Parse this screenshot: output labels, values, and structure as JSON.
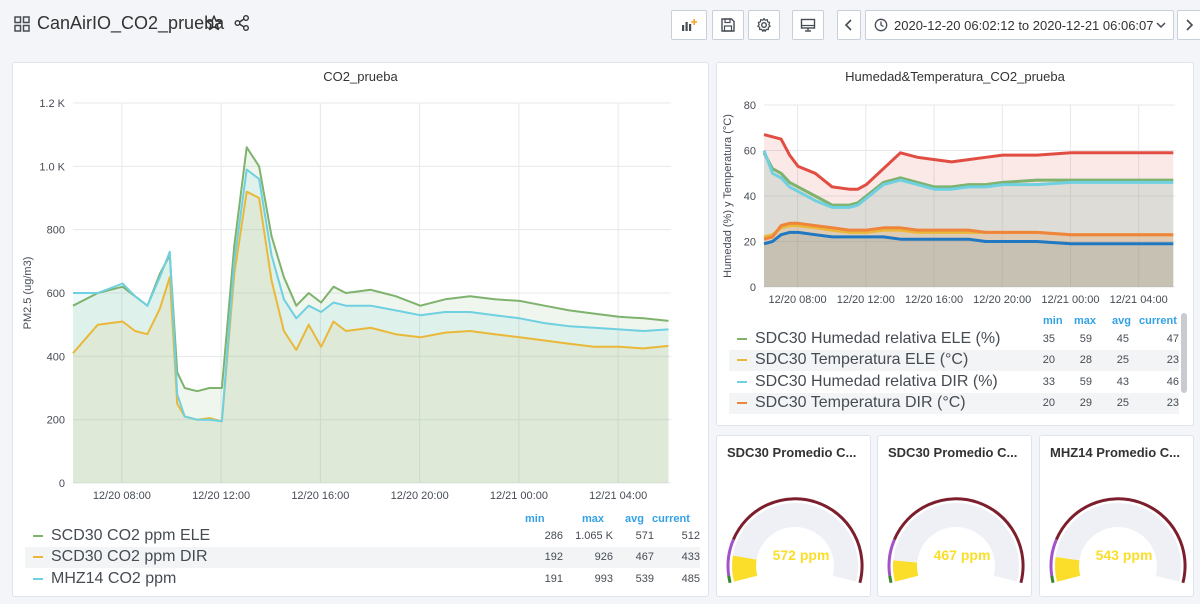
{
  "header": {
    "title": "CanAirIO_CO2_prueba",
    "time_range": "2020-12-20 06:02:12 to 2020-12-21 06:06:07"
  },
  "icons": {
    "grid": "grid-icon",
    "star": "star-icon",
    "share": "share-icon",
    "add_panel": "add-panel-icon",
    "save": "save-icon",
    "settings": "gear-icon",
    "tv": "tv-mode-icon",
    "back": "chevron-left-icon",
    "clock": "clock-icon",
    "caret": "chevron-down-icon",
    "forward": "chevron-right-icon"
  },
  "co2_panel": {
    "title": "CO2_prueba",
    "legend_headers": {
      "min": "min",
      "max": "max",
      "avg": "avg",
      "current": "current"
    },
    "legend": [
      {
        "name": "SCD30 CO2 ppm ELE",
        "color": "#7eb26d",
        "min": "286",
        "max": "1.065 K",
        "avg": "571",
        "current": "512"
      },
      {
        "name": "SCD30 CO2 ppm DIR",
        "color": "#eab839",
        "min": "192",
        "max": "926",
        "avg": "467",
        "current": "433"
      },
      {
        "name": "MHZ14 CO2 ppm",
        "color": "#6ed0e0",
        "min": "191",
        "max": "993",
        "avg": "539",
        "current": "485"
      }
    ]
  },
  "hum_panel": {
    "title": "Humedad&Temperatura_CO2_prueba",
    "legend_headers": {
      "min": "min",
      "max": "max",
      "avg": "avg",
      "current": "current"
    },
    "legend": [
      {
        "name": "SDC30 Humedad relativa ELE (%)",
        "color": "#7eb26d",
        "min": "35",
        "max": "59",
        "avg": "45",
        "current": "47"
      },
      {
        "name": "SDC30 Temperatura ELE (°C)",
        "color": "#eab839",
        "min": "20",
        "max": "28",
        "avg": "25",
        "current": "23"
      },
      {
        "name": "SDC30 Humedad relativa DIR (%)",
        "color": "#6ed0e0",
        "min": "33",
        "max": "59",
        "avg": "43",
        "current": "46"
      },
      {
        "name": "SDC30 Temperatura DIR (°C)",
        "color": "#ef843c",
        "min": "20",
        "max": "29",
        "avg": "25",
        "current": "23"
      }
    ]
  },
  "gauges": [
    {
      "title": "SDC30 Promedio C...",
      "value_text": "572 ppm",
      "value": 572
    },
    {
      "title": "SDC30 Promedio C...",
      "value_text": "467 ppm",
      "value": 467
    },
    {
      "title": "MHZ14 Promedio C...",
      "value_text": "543 ppm",
      "value": 543
    }
  ],
  "chart_data": [
    {
      "type": "line",
      "title": "CO2_prueba",
      "ylabel": "PM2.5 (ug/m3)",
      "ylim": [
        0,
        1200
      ],
      "yticks": [
        "0",
        "200",
        "400",
        "600",
        "800",
        "1.0 K",
        "1.2 K"
      ],
      "xticks": [
        "12/20 08:00",
        "12/20 12:00",
        "12/20 16:00",
        "12/20 20:00",
        "12/21 00:00",
        "12/21 04:00"
      ],
      "x_hours": [
        0,
        1,
        2,
        2.5,
        3,
        3.5,
        3.9,
        4.2,
        4.5,
        5,
        5.5,
        6,
        6.5,
        7,
        7.5,
        8,
        8.5,
        9,
        9.5,
        10,
        10.5,
        11,
        12,
        13,
        14,
        15,
        16,
        17,
        18,
        19,
        20,
        21,
        22,
        23,
        24
      ],
      "series": [
        {
          "name": "SCD30 CO2 ppm ELE",
          "color": "#7eb26d",
          "values": [
            560,
            600,
            620,
            590,
            560,
            660,
            720,
            350,
            300,
            290,
            300,
            300,
            750,
            1060,
            1000,
            780,
            650,
            560,
            600,
            570,
            620,
            600,
            610,
            590,
            560,
            580,
            590,
            580,
            575,
            560,
            545,
            535,
            525,
            520,
            512
          ]
        },
        {
          "name": "SCD30 CO2 ppm DIR",
          "color": "#eab839",
          "values": [
            410,
            500,
            510,
            480,
            470,
            550,
            650,
            250,
            210,
            200,
            205,
            195,
            660,
            920,
            900,
            640,
            480,
            420,
            500,
            430,
            510,
            480,
            490,
            470,
            460,
            475,
            480,
            470,
            460,
            450,
            440,
            430,
            430,
            425,
            433
          ]
        },
        {
          "name": "MHZ14 CO2 ppm",
          "color": "#6ed0e0",
          "values": [
            600,
            600,
            630,
            590,
            560,
            650,
            730,
            280,
            210,
            200,
            200,
            195,
            700,
            990,
            960,
            720,
            580,
            520,
            560,
            540,
            570,
            560,
            560,
            545,
            530,
            540,
            540,
            530,
            520,
            505,
            495,
            490,
            485,
            480,
            485
          ]
        }
      ]
    },
    {
      "type": "line",
      "title": "Humedad&Temperatura_CO2_prueba",
      "ylabel": "Humedad (%) y Temperatura (°C)",
      "ylim": [
        0,
        80
      ],
      "yticks": [
        "0",
        "20",
        "40",
        "60",
        "80"
      ],
      "xticks": [
        "12/20 08:00",
        "12/20 12:00",
        "12/20 16:00",
        "12/20 20:00",
        "12/21 00:00",
        "12/21 04:00"
      ],
      "x_hours": [
        0,
        0.5,
        1,
        1.5,
        2,
        3,
        4,
        5,
        5.5,
        6,
        7,
        8,
        9,
        10,
        11,
        12,
        13,
        14,
        16,
        18,
        20,
        22,
        24
      ],
      "series": [
        {
          "name": "SDC30 Humedad relativa ELE (%)",
          "color": "#7eb26d",
          "values": [
            59,
            52,
            50,
            46,
            44,
            40,
            36,
            36,
            37,
            40,
            46,
            48,
            46,
            44,
            44,
            45,
            45,
            46,
            47,
            47,
            47,
            47,
            47
          ]
        },
        {
          "name": "SDC30 Temperatura ELE (°C)",
          "color": "#eab839",
          "values": [
            22,
            23,
            26,
            27,
            27,
            26,
            25,
            24,
            24,
            24,
            25,
            25,
            24,
            24,
            24,
            24,
            24,
            24,
            24,
            23,
            23,
            23,
            23
          ]
        },
        {
          "name": "SDC30 Humedad relativa DIR (%)",
          "color": "#6ed0e0",
          "values": [
            60,
            50,
            48,
            44,
            42,
            38,
            35,
            35,
            36,
            39,
            45,
            47,
            45,
            43,
            43,
            44,
            44,
            45,
            45,
            46,
            46,
            46,
            46
          ]
        },
        {
          "name": "SDC30 Temperatura DIR (°C)",
          "color": "#ef843c",
          "values": [
            21,
            22,
            27,
            28,
            28,
            27,
            26,
            25,
            25,
            25,
            26,
            26,
            25,
            25,
            25,
            25,
            24,
            24,
            24,
            23,
            23,
            23,
            23
          ]
        },
        {
          "name": "",
          "color": "#e24d42",
          "values": [
            67,
            66,
            65,
            58,
            53,
            50,
            44,
            43,
            43,
            45,
            52,
            59,
            57,
            56,
            55,
            56,
            57,
            58,
            58,
            59,
            59,
            59,
            59
          ]
        },
        {
          "name": "",
          "color": "#1f78c1",
          "values": [
            19,
            20,
            23,
            24,
            24,
            23,
            22,
            22,
            22,
            22,
            22,
            21,
            21,
            21,
            21,
            21,
            20,
            20,
            20,
            19,
            19,
            19,
            19
          ]
        }
      ]
    }
  ]
}
